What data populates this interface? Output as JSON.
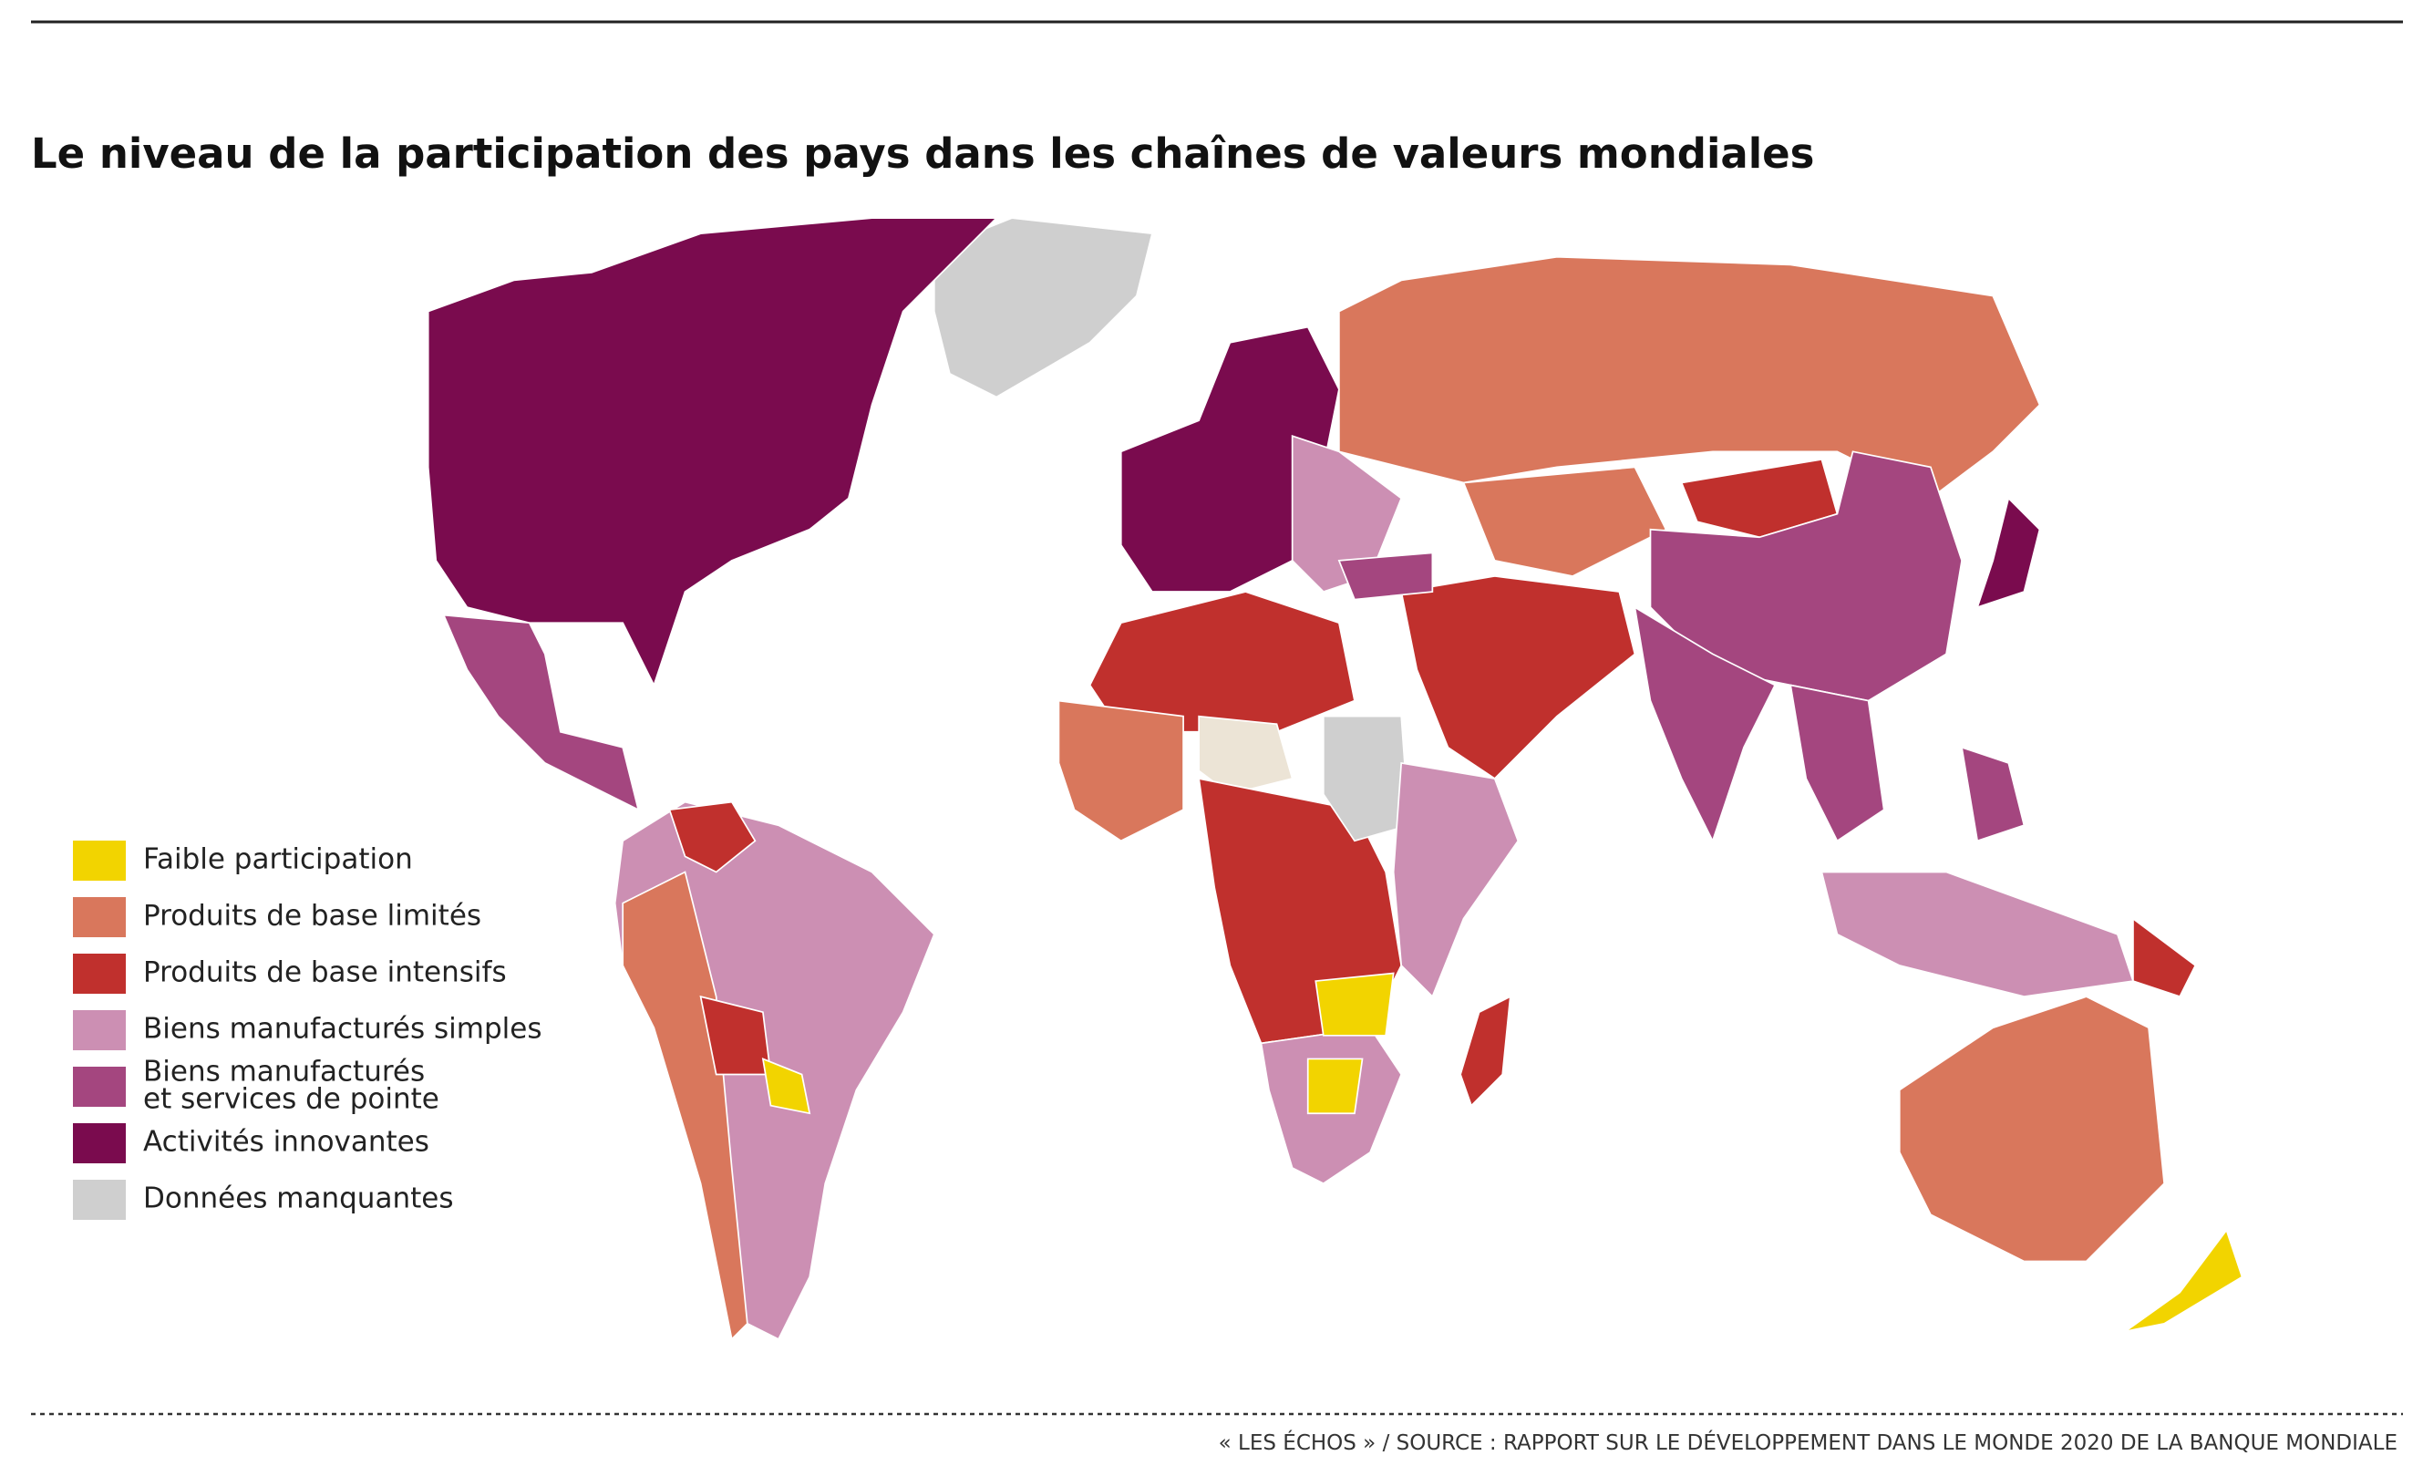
{
  "title": "Le niveau de la participation des pays dans les chaînes de valeurs mondiales",
  "legend": [
    {
      "lines": [
        "Faible participation"
      ],
      "color": "#f2d400"
    },
    {
      "lines": [
        "Produits de base limités"
      ],
      "color": "#d9775c"
    },
    {
      "lines": [
        "Produits de base intensifs"
      ],
      "color": "#c0302d"
    },
    {
      "lines": [
        "Biens manufacturés simples"
      ],
      "color": "#cc8fb3"
    },
    {
      "lines": [
        "Biens manufacturés",
        "et services de pointe"
      ],
      "color": "#a4467f"
    },
    {
      "lines": [
        "Activités innovantes"
      ],
      "color": "#7a0b4e"
    },
    {
      "lines": [
        "Données manquantes"
      ],
      "color": "#cfcfcf"
    }
  ],
  "source": "« LES ÉCHOS » / SOURCE : RAPPORT SUR LE DÉVELOPPEMENT DANS LE MONDE 2020 DE LA BANQUE MONDIALE"
}
